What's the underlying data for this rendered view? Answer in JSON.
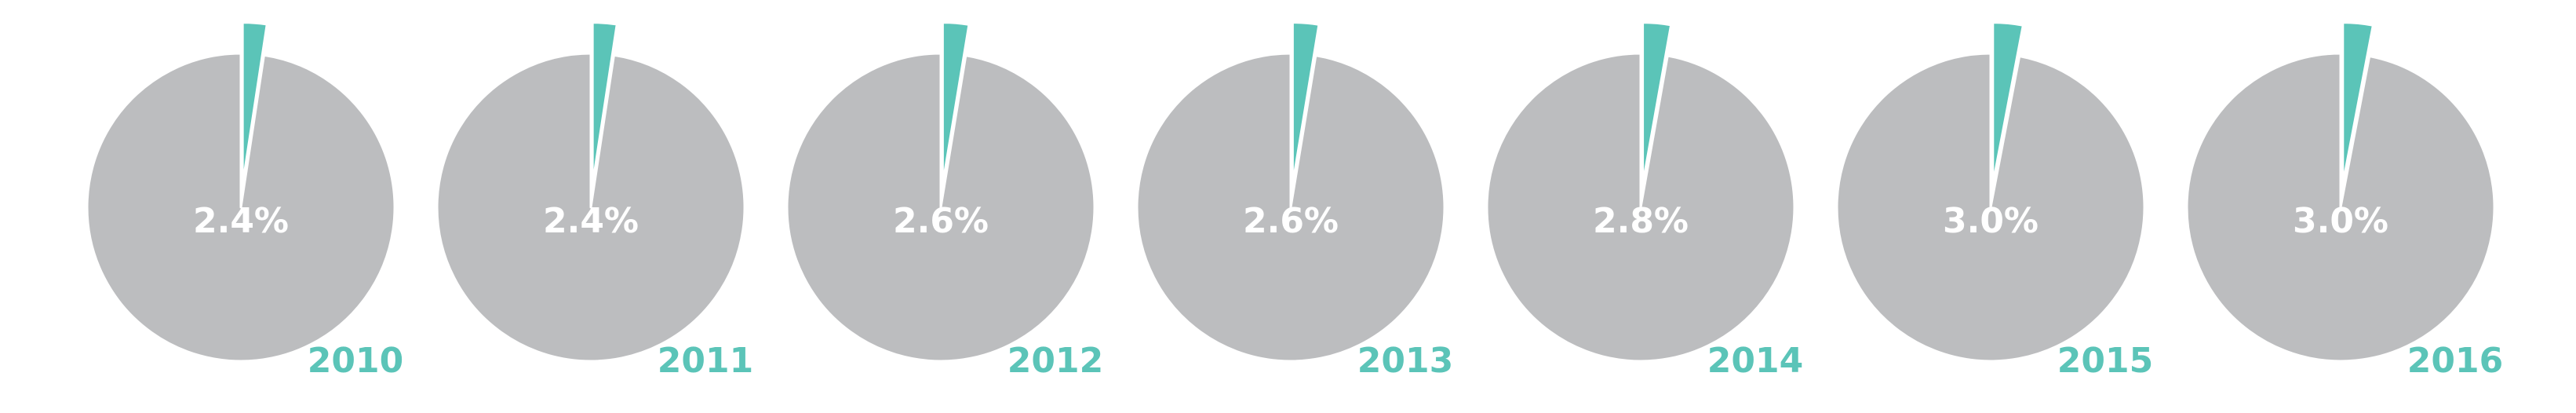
{
  "chart_data": {
    "type": "pie",
    "pie_color": "#bcbdbf",
    "highlight_color": "#5bc4b8",
    "label_color": "#ffffff",
    "year_color": "#5bc4b8",
    "highlight_exploded": true,
    "charts": [
      {
        "year": "2010",
        "value": 2.4,
        "label": "2.4%"
      },
      {
        "year": "2011",
        "value": 2.4,
        "label": "2.4%"
      },
      {
        "year": "2012",
        "value": 2.6,
        "label": "2.6%"
      },
      {
        "year": "2013",
        "value": 2.6,
        "label": "2.6%"
      },
      {
        "year": "2014",
        "value": 2.8,
        "label": "2.8%"
      },
      {
        "year": "2015",
        "value": 3.0,
        "label": "3.0%"
      },
      {
        "year": "2016",
        "value": 3.0,
        "label": "3.0%"
      }
    ]
  }
}
